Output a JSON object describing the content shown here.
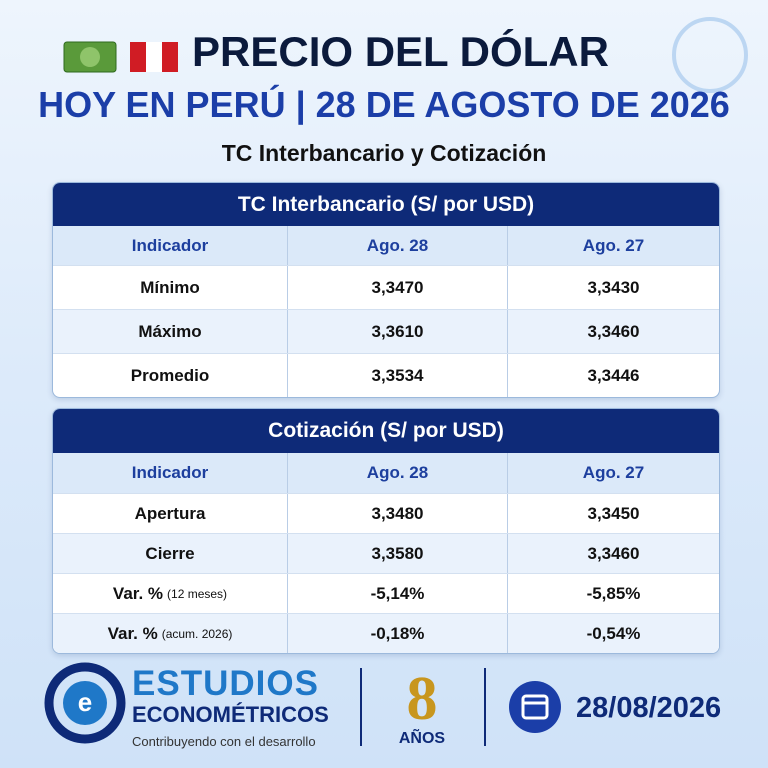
{
  "header": {
    "title": "PRECIO DEL DÓLAR",
    "subtitle": "HOY EN PERÚ | 28 DE AGOSTO DE 2026",
    "caption": "TC Interbancario y Cotización"
  },
  "tables": [
    {
      "title": "TC Interbancario (S/ por USD)",
      "columns": [
        "Indicador",
        "Ago. 28",
        "Ago. 27"
      ],
      "rows": [
        {
          "label": "Mínimo",
          "values": [
            "3,3470",
            "3,3430"
          ]
        },
        {
          "label": "Máximo",
          "values": [
            "3,3610",
            "3,3460"
          ]
        },
        {
          "label": "Promedio",
          "values": [
            "3,3534",
            "3,3446"
          ]
        }
      ]
    },
    {
      "title": "Cotización (S/ por USD)",
      "columns": [
        "Indicador",
        "Ago. 28",
        "Ago. 27"
      ],
      "rows": [
        {
          "label": "Apertura",
          "values": [
            "3,3480",
            "3,3450"
          ]
        },
        {
          "label": "Cierre",
          "values": [
            "3,3580",
            "3,3460"
          ]
        },
        {
          "label": "Var. %",
          "note": "(12 meses)",
          "values": [
            "-5,14%",
            "-5,85%"
          ]
        },
        {
          "label": "Var. %",
          "note": "(acum. 2026)",
          "values": [
            "-0,18%",
            "-0,54%"
          ]
        }
      ]
    }
  ],
  "footer": {
    "brand_top": "ESTUDIOS",
    "brand_bottom": "ECONOMÉTRICOS",
    "tagline": "Contribuyendo con el desarrollo",
    "years": "8",
    "years_label": "AÑOS",
    "date": "28/08/2026"
  }
}
